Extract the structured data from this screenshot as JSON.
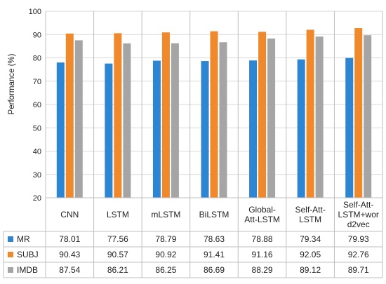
{
  "chart_data": {
    "type": "bar",
    "ylabel": "Performance (%)",
    "xlabel": "",
    "ylim": [
      20,
      100
    ],
    "yticks": [
      20,
      30,
      40,
      50,
      60,
      70,
      80,
      90,
      100
    ],
    "grid": true,
    "legend_placement": "table-rows",
    "categories": [
      [
        "CNN"
      ],
      [
        "LSTM"
      ],
      [
        "mLSTM"
      ],
      [
        "BiLSTM"
      ],
      [
        "Global-",
        "Att-LSTM"
      ],
      [
        "Self-Att-",
        "LSTM"
      ],
      [
        "Self-Att-",
        "LSTM+wor",
        "d2vec"
      ]
    ],
    "series": [
      {
        "name": "MR",
        "color": "#2e86d3",
        "values": [
          78.01,
          77.56,
          78.79,
          78.63,
          78.88,
          79.34,
          79.93
        ]
      },
      {
        "name": "SUBJ",
        "color": "#f0892b",
        "values": [
          90.43,
          90.57,
          90.92,
          91.41,
          91.16,
          92.05,
          92.76
        ]
      },
      {
        "name": "IMDB",
        "color": "#a5a5a5",
        "values": [
          87.54,
          86.21,
          86.25,
          86.69,
          88.29,
          89.12,
          89.71
        ]
      }
    ]
  }
}
